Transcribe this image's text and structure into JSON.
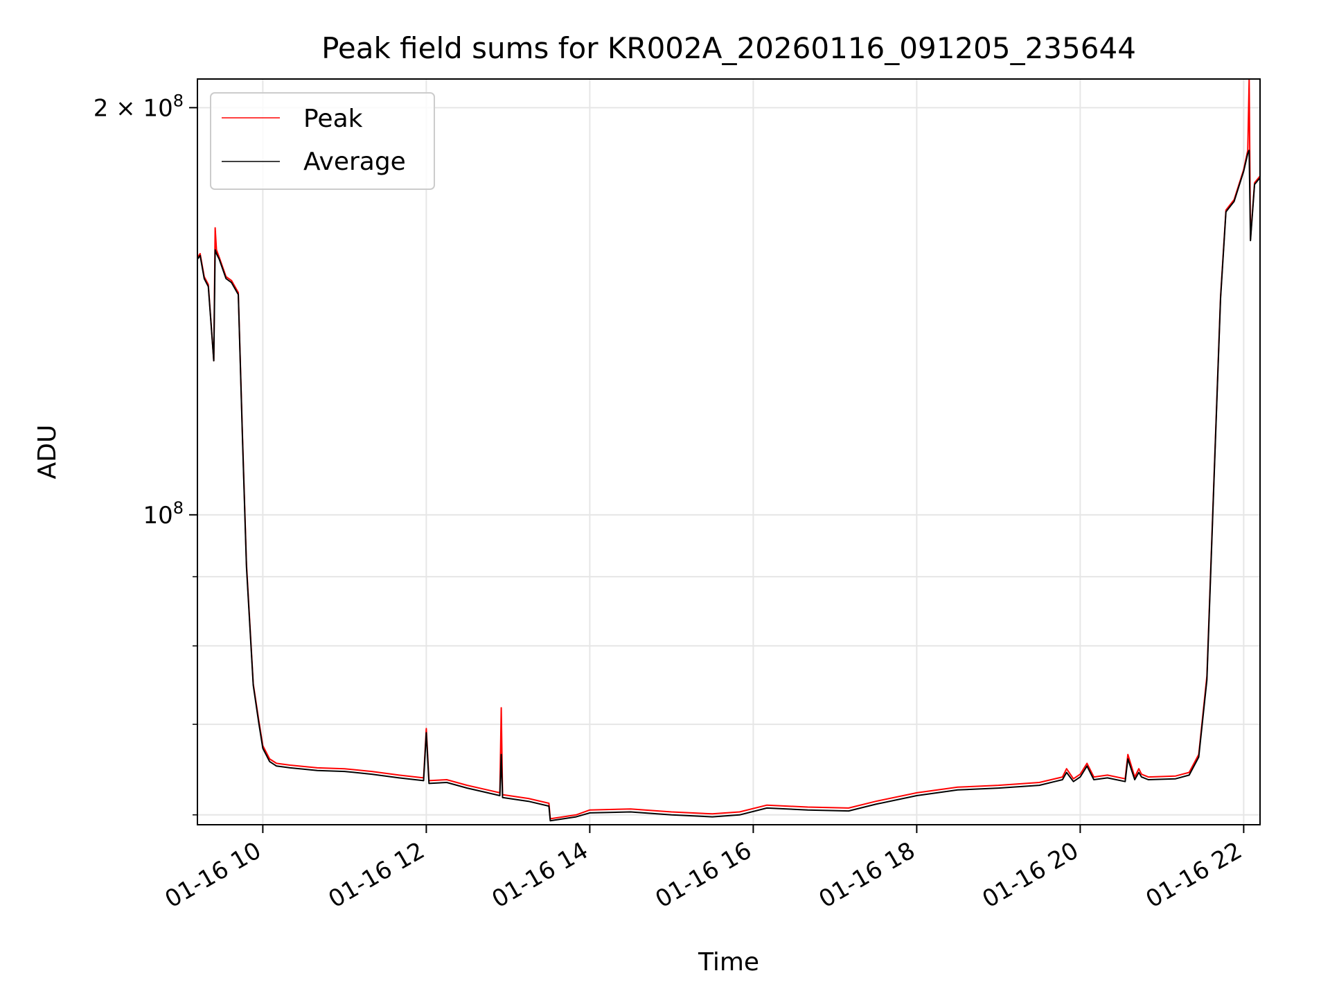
{
  "chart_data": {
    "type": "line",
    "title": "Peak field sums for KR002A_20260116_091205_235644",
    "xlabel": "Time",
    "ylabel": "ADU",
    "yscale": "log",
    "grid": true,
    "legend_position": "upper-left",
    "xlim": [
      "2026-01-16T09:12",
      "2026-01-16T22:12"
    ],
    "ylim": [
      59000000,
      210000000
    ],
    "x_ticks": [
      {
        "value": "2026-01-16T10:00",
        "label": "01-16 10"
      },
      {
        "value": "2026-01-16T12:00",
        "label": "01-16 12"
      },
      {
        "value": "2026-01-16T14:00",
        "label": "01-16 14"
      },
      {
        "value": "2026-01-16T16:00",
        "label": "01-16 16"
      },
      {
        "value": "2026-01-16T18:00",
        "label": "01-16 18"
      },
      {
        "value": "2026-01-16T20:00",
        "label": "01-16 20"
      },
      {
        "value": "2026-01-16T22:00",
        "label": "01-16 22"
      }
    ],
    "y_ticks": [
      {
        "value": 100000000,
        "label_base": "10",
        "label_exp": "8",
        "label_prefix": ""
      },
      {
        "value": 200000000,
        "label_base": "10",
        "label_exp": "8",
        "label_prefix": "2 × "
      }
    ],
    "series": [
      {
        "name": "Peak",
        "color": "#ff0000",
        "x": [
          "2026-01-16T09:12",
          "2026-01-16T09:14",
          "2026-01-16T09:17",
          "2026-01-16T09:20",
          "2026-01-16T09:24",
          "2026-01-16T09:25",
          "2026-01-16T09:26",
          "2026-01-16T09:28",
          "2026-01-16T09:33",
          "2026-01-16T09:37",
          "2026-01-16T09:42",
          "2026-01-16T09:45",
          "2026-01-16T09:48",
          "2026-01-16T09:53",
          "2026-01-16T09:57",
          "2026-01-16T10:00",
          "2026-01-16T10:05",
          "2026-01-16T10:10",
          "2026-01-16T10:20",
          "2026-01-16T10:40",
          "2026-01-16T11:00",
          "2026-01-16T11:20",
          "2026-01-16T11:40",
          "2026-01-16T11:58",
          "2026-01-16T12:00",
          "2026-01-16T12:02",
          "2026-01-16T12:15",
          "2026-01-16T12:30",
          "2026-01-16T12:45",
          "2026-01-16T12:54",
          "2026-01-16T12:55",
          "2026-01-16T12:56",
          "2026-01-16T13:15",
          "2026-01-16T13:30",
          "2026-01-16T13:31",
          "2026-01-16T13:50",
          "2026-01-16T14:00",
          "2026-01-16T14:30",
          "2026-01-16T15:00",
          "2026-01-16T15:30",
          "2026-01-16T15:50",
          "2026-01-16T16:10",
          "2026-01-16T16:40",
          "2026-01-16T17:10",
          "2026-01-16T17:30",
          "2026-01-16T18:00",
          "2026-01-16T18:30",
          "2026-01-16T19:00",
          "2026-01-16T19:30",
          "2026-01-16T19:47",
          "2026-01-16T19:50",
          "2026-01-16T19:55",
          "2026-01-16T20:00",
          "2026-01-16T20:05",
          "2026-01-16T20:10",
          "2026-01-16T20:20",
          "2026-01-16T20:33",
          "2026-01-16T20:35",
          "2026-01-16T20:40",
          "2026-01-16T20:43",
          "2026-01-16T20:45",
          "2026-01-16T20:50",
          "2026-01-16T21:10",
          "2026-01-16T21:20",
          "2026-01-16T21:27",
          "2026-01-16T21:33",
          "2026-01-16T21:38",
          "2026-01-16T21:43",
          "2026-01-16T21:47",
          "2026-01-16T21:53",
          "2026-01-16T22:00",
          "2026-01-16T22:03",
          "2026-01-16T22:04",
          "2026-01-16T22:05",
          "2026-01-16T22:08",
          "2026-01-16T22:12"
        ],
        "y": [
          155000000,
          156000000,
          150000000,
          148000000,
          130000000,
          163000000,
          157000000,
          155000000,
          150000000,
          149000000,
          146000000,
          115000000,
          92000000,
          75000000,
          70500000,
          67500000,
          66000000,
          65500000,
          65300000,
          65000000,
          64900000,
          64600000,
          64200000,
          63900000,
          69500000,
          63600000,
          63700000,
          63100000,
          62600000,
          62300000,
          72000000,
          62100000,
          61700000,
          61200000,
          59600000,
          60000000,
          60500000,
          60600000,
          60300000,
          60100000,
          60300000,
          61000000,
          60800000,
          60700000,
          61400000,
          62300000,
          62900000,
          63100000,
          63400000,
          64000000,
          64900000,
          63800000,
          64300000,
          65500000,
          64000000,
          64200000,
          63800000,
          66500000,
          64000000,
          64900000,
          64300000,
          64000000,
          64100000,
          64500000,
          66500000,
          76000000,
          105000000,
          145000000,
          168000000,
          171000000,
          180000000,
          186000000,
          210000000,
          160000000,
          176000000,
          178000000
        ]
      },
      {
        "name": "Average",
        "color": "#000000",
        "x": [
          "2026-01-16T09:12",
          "2026-01-16T09:14",
          "2026-01-16T09:17",
          "2026-01-16T09:20",
          "2026-01-16T09:24",
          "2026-01-16T09:25",
          "2026-01-16T09:26",
          "2026-01-16T09:28",
          "2026-01-16T09:33",
          "2026-01-16T09:37",
          "2026-01-16T09:42",
          "2026-01-16T09:45",
          "2026-01-16T09:48",
          "2026-01-16T09:53",
          "2026-01-16T09:57",
          "2026-01-16T10:00",
          "2026-01-16T10:05",
          "2026-01-16T10:10",
          "2026-01-16T10:20",
          "2026-01-16T10:40",
          "2026-01-16T11:00",
          "2026-01-16T11:20",
          "2026-01-16T11:40",
          "2026-01-16T11:58",
          "2026-01-16T12:00",
          "2026-01-16T12:02",
          "2026-01-16T12:15",
          "2026-01-16T12:30",
          "2026-01-16T12:45",
          "2026-01-16T12:54",
          "2026-01-16T12:55",
          "2026-01-16T12:56",
          "2026-01-16T13:15",
          "2026-01-16T13:30",
          "2026-01-16T13:31",
          "2026-01-16T13:50",
          "2026-01-16T14:00",
          "2026-01-16T14:30",
          "2026-01-16T15:00",
          "2026-01-16T15:30",
          "2026-01-16T15:50",
          "2026-01-16T16:10",
          "2026-01-16T16:40",
          "2026-01-16T17:10",
          "2026-01-16T17:30",
          "2026-01-16T18:00",
          "2026-01-16T18:30",
          "2026-01-16T19:00",
          "2026-01-16T19:30",
          "2026-01-16T19:47",
          "2026-01-16T19:50",
          "2026-01-16T19:55",
          "2026-01-16T20:00",
          "2026-01-16T20:05",
          "2026-01-16T20:10",
          "2026-01-16T20:20",
          "2026-01-16T20:33",
          "2026-01-16T20:35",
          "2026-01-16T20:40",
          "2026-01-16T20:43",
          "2026-01-16T20:45",
          "2026-01-16T20:50",
          "2026-01-16T21:10",
          "2026-01-16T21:20",
          "2026-01-16T21:27",
          "2026-01-16T21:33",
          "2026-01-16T21:38",
          "2026-01-16T21:43",
          "2026-01-16T21:47",
          "2026-01-16T21:53",
          "2026-01-16T22:00",
          "2026-01-16T22:03",
          "2026-01-16T22:04",
          "2026-01-16T22:05",
          "2026-01-16T22:08",
          "2026-01-16T22:12"
        ],
        "y": [
          154500000,
          155500000,
          149500000,
          147500000,
          130000000,
          157000000,
          156000000,
          154500000,
          149500000,
          148500000,
          145500000,
          114500000,
          91500000,
          74800000,
          70200000,
          67200000,
          65700000,
          65200000,
          65000000,
          64700000,
          64600000,
          64300000,
          63900000,
          63600000,
          69000000,
          63300000,
          63400000,
          62800000,
          62300000,
          62000000,
          66500000,
          61800000,
          61400000,
          60900000,
          59400000,
          59800000,
          60200000,
          60300000,
          60000000,
          59800000,
          60000000,
          60700000,
          60500000,
          60400000,
          61100000,
          62000000,
          62600000,
          62800000,
          63100000,
          63700000,
          64500000,
          63500000,
          64000000,
          65200000,
          63700000,
          63900000,
          63500000,
          66000000,
          63700000,
          64500000,
          64000000,
          63700000,
          63800000,
          64200000,
          66200000,
          75500000,
          104500000,
          144500000,
          167500000,
          170500000,
          179500000,
          185000000,
          186000000,
          159500000,
          175500000,
          177500000
        ]
      }
    ]
  }
}
